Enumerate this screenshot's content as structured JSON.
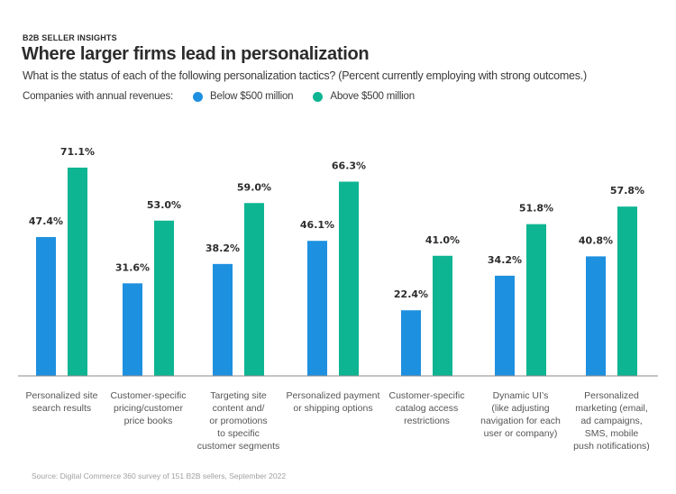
{
  "kicker": "B2B SELLER INSIGHTS",
  "title": "Where larger firms lead in personalization",
  "subtitle": "What is the status of each of the following personalization tactics? (Percent currently employing with strong outcomes.)",
  "legend": {
    "prefix": "Companies with annual revenues:",
    "items": [
      {
        "label": "Below $500 million",
        "color": "#1e90e0"
      },
      {
        "label": "Above $500 million",
        "color": "#0db592"
      }
    ]
  },
  "source": "Source: Digital Commerce 360 survey of 151 B2B sellers, September 2022",
  "chart_data": {
    "type": "bar",
    "title": "Where larger firms lead in personalization",
    "xlabel": "",
    "ylabel": "",
    "ylim": [
      0,
      75
    ],
    "grid": false,
    "legend_position": "top-left",
    "categories": [
      "Personalized site search results",
      "Customer-specific pricing/customer price books",
      "Targeting site content and/ or promotions to specific customer segments",
      "Personalized payment or shipping options",
      "Customer-specific catalog access restrictions",
      "Dynamic UI's (like adjusting navigation for each user or company)",
      "Personalized marketing (email, ad campaigns, SMS, mobile push notifications)"
    ],
    "category_lines": [
      [
        "Personalized site",
        "search results"
      ],
      [
        "Customer-specific",
        "pricing/customer",
        "price books"
      ],
      [
        "Targeting site",
        "content and/",
        "or promotions",
        "to specific",
        "customer segments"
      ],
      [
        "Personalized payment",
        "or shipping options"
      ],
      [
        "Customer-specific",
        "catalog access",
        "restrictions"
      ],
      [
        "Dynamic UI’s",
        "(like adjusting",
        "navigation for each",
        "user or company)"
      ],
      [
        "Personalized",
        "marketing (email,",
        "ad campaigns,",
        "SMS, mobile",
        "push notifications)"
      ]
    ],
    "series": [
      {
        "name": "Below $500 million",
        "color": "#1e90e0",
        "values": [
          47.4,
          31.6,
          38.2,
          46.1,
          22.4,
          34.2,
          40.8
        ],
        "labels": [
          "47.4%",
          "31.6%",
          "38.2%",
          "46.1%",
          "22.4%",
          "34.2%",
          "40.8%"
        ]
      },
      {
        "name": "Above $500 million",
        "color": "#0db592",
        "values": [
          71.1,
          53.0,
          59.0,
          66.3,
          41.0,
          51.8,
          57.8
        ],
        "labels": [
          "71.1%",
          "53.0%",
          "59.0%",
          "66.3%",
          "41.0%",
          "51.8%",
          "57.8%"
        ]
      }
    ]
  }
}
